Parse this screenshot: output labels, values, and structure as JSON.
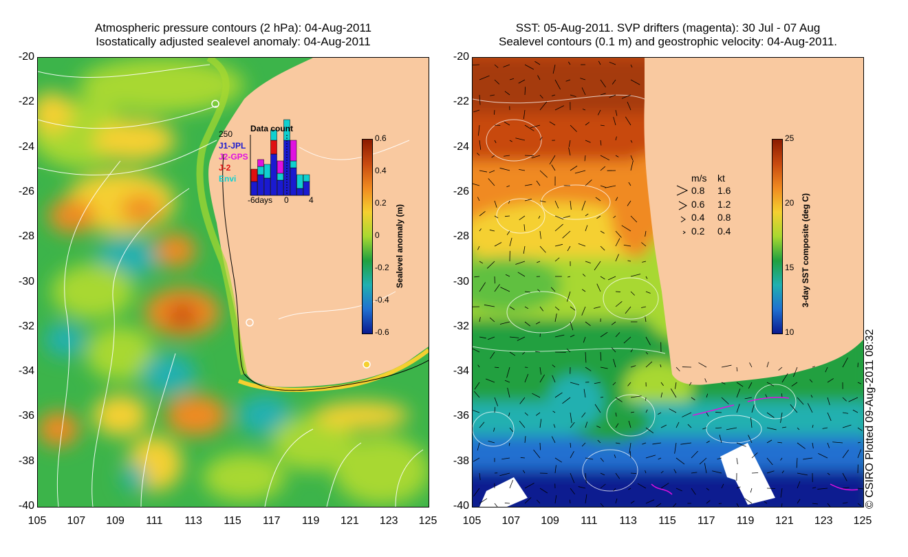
{
  "left_map": {
    "title_line1": "Atmospheric pressure contours (2 hPa): 04-Aug-2011",
    "title_line2": "Isostatically adjusted sealevel anomaly: 04-Aug-2011",
    "y_ticks": [
      "-20",
      "-22",
      "-24",
      "-26",
      "-28",
      "-30",
      "-32",
      "-34",
      "-36",
      "-38",
      "-40"
    ],
    "x_ticks": [
      "105",
      "107",
      "109",
      "111",
      "113",
      "115",
      "117",
      "119",
      "121",
      "123",
      "125"
    ],
    "colorbar": {
      "label": "Sealevel anomaly (m)",
      "ticks": [
        "0.6",
        "0.4",
        "0.2",
        "0",
        "-0.2",
        "-0.4",
        "-0.6"
      ],
      "colors": [
        "#8b1a00",
        "#c84a10",
        "#f08a20",
        "#f5d030",
        "#a8d830",
        "#20a040",
        "#20b0b0",
        "#2070d0",
        "#0a1a90"
      ]
    },
    "inset": {
      "title": "Data count",
      "max_label": "250",
      "missions": [
        {
          "name": "J1-JPL",
          "color": "#1a1ad0"
        },
        {
          "name": "J2-GPS",
          "color": "#e010e0"
        },
        {
          "name": "J-2",
          "color": "#e01010"
        },
        {
          "name": "Envi",
          "color": "#10d0d0"
        }
      ],
      "x_labels": [
        "-6days",
        "0",
        "4"
      ]
    }
  },
  "right_map": {
    "title_line1": "SST: 05-Aug-2011. SVP drifters (magenta): 30 Jul - 07 Aug",
    "title_line2": "Sealevel contours (0.1 m) and geostrophic velocity: 04-Aug-2011.",
    "y_ticks": [
      "-20",
      "-22",
      "-24",
      "-26",
      "-28",
      "-30",
      "-32",
      "-34",
      "-36",
      "-38",
      "-40"
    ],
    "x_ticks": [
      "105",
      "107",
      "109",
      "111",
      "113",
      "115",
      "117",
      "119",
      "121",
      "123",
      "125"
    ],
    "colorbar": {
      "label": "3-day SST composite (deg C)",
      "ticks": [
        "25",
        "20",
        "15",
        "10"
      ],
      "colors": [
        "#8b1a00",
        "#c84a10",
        "#f08a20",
        "#f5d030",
        "#a8d830",
        "#20a040",
        "#20b0b0",
        "#2070d0",
        "#0a1a90"
      ]
    },
    "velocity_legend": {
      "header_ms": "m/s",
      "header_kt": "kt",
      "rows": [
        {
          "ms": "0.8",
          "kt": "1.6"
        },
        {
          "ms": "0.6",
          "kt": "1.2"
        },
        {
          "ms": "0.4",
          "kt": "0.8"
        },
        {
          "ms": "0.2",
          "kt": "0.4"
        }
      ]
    }
  },
  "credit": "© CSIRO Plotted 09-Aug-2011 08:32",
  "colors": {
    "land": "#f9c9a0",
    "frame": "#000000"
  }
}
